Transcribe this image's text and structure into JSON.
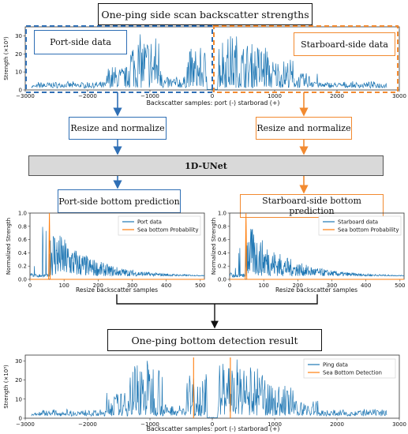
{
  "diagram": {
    "top_title": "One-ping side scan backscatter strengths",
    "port_side_label": "Port-side data",
    "starboard_side_label": "Starboard-side data",
    "resize_left": "Resize and normalize",
    "resize_right": "Resize and normalize",
    "model": "1D-UNet",
    "port_prediction": "Port-side bottom prediction",
    "starboard_prediction": "Starboard-side bottom prediction",
    "result_title": "One-ping bottom detection result",
    "colors": {
      "blue": "#2f6fb5",
      "orange": "#f28a30",
      "signal": "#1f77b4",
      "detection": "#ff7f0e"
    }
  },
  "chart_data": [
    {
      "type": "line",
      "id": "top",
      "xlabel": "Backscatter samples: port (-) starborad (+)",
      "ylabel": "Strength (×10³)",
      "xlim": [
        -3000,
        3000
      ],
      "ylim": [
        0,
        35
      ],
      "xticks": [
        "−3000",
        "−2000",
        "−1000",
        "0",
        "1000",
        "2000",
        "3000"
      ],
      "yticks": [
        "0",
        "10",
        "20",
        "30"
      ],
      "series": [
        {
          "values_desc": "port and starboard backscatter strength"
        }
      ]
    },
    {
      "type": "line",
      "id": "port",
      "xlabel": "Resize backscatter samples",
      "ylabel": "Normalized Strength",
      "xlim": [
        0,
        512
      ],
      "ylim": [
        0,
        1
      ],
      "xticks": [
        "0",
        "100",
        "200",
        "300",
        "400",
        "500"
      ],
      "yticks": [
        "0.0",
        "0.2",
        "0.4",
        "0.6",
        "0.8",
        "1.0"
      ],
      "legend": [
        "Port data",
        "Sea bottom Probability"
      ],
      "bottom_index": 57
    },
    {
      "type": "line",
      "id": "starboard",
      "xlabel": "Resize backscatter samples",
      "ylabel": "Normalized Strength",
      "xlim": [
        0,
        512
      ],
      "ylim": [
        0,
        1
      ],
      "xticks": [
        "0",
        "100",
        "200",
        "300",
        "400",
        "500"
      ],
      "yticks": [
        "0.0",
        "0.2",
        "0.4",
        "0.6",
        "0.8",
        "1.0"
      ],
      "legend": [
        "Starboard data",
        "Sea bottom Probability"
      ],
      "bottom_index": 48
    },
    {
      "type": "line",
      "id": "result",
      "xlabel": "Backscatter samples: port (-) starborad (+)",
      "ylabel": "Strength (×10³)",
      "xlim": [
        -3000,
        3000
      ],
      "ylim": [
        0,
        33
      ],
      "xticks": [
        "−3000",
        "−2000",
        "−1000",
        "0",
        "1000",
        "2000",
        "3000"
      ],
      "yticks": [
        "0",
        "10",
        "20",
        "30"
      ],
      "legend": [
        "Ping data",
        "Sea Bottom Detection"
      ],
      "detections": [
        -300,
        290
      ]
    }
  ]
}
